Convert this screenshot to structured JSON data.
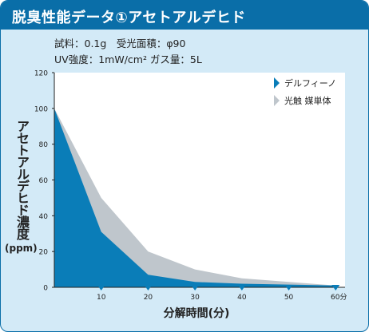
{
  "title": "脱臭性能データ①アセトアルデヒド",
  "conditions": {
    "line1": "試料：0.1g　受光面積：φ90",
    "line2": "UV強度：1mW/cm²  ガス量：5L"
  },
  "colors": {
    "accent": "#0a6ea8",
    "panel_bg": "#d3eaf7",
    "series_delfino": "#0a7db8",
    "series_photocatalyst": "#bfc6cc"
  },
  "chart_data": {
    "type": "area",
    "title": "脱臭性能データ①アセトアルデヒド",
    "xlabel": "分解時間(分)",
    "ylabel": "アセトアルデヒド濃度",
    "yunit": "(ppm)",
    "xlim": [
      0,
      62
    ],
    "ylim": [
      0,
      120
    ],
    "x_ticks": [
      "10",
      "20",
      "30",
      "40",
      "50",
      "60分"
    ],
    "x_tick_values": [
      10,
      20,
      30,
      40,
      50,
      60
    ],
    "y_ticks": [
      "0",
      "20",
      "40",
      "60",
      "80",
      "100",
      "120"
    ],
    "y_tick_values": [
      0,
      20,
      40,
      60,
      80,
      100,
      120
    ],
    "grid": false,
    "legend_position": "top-right",
    "series": [
      {
        "name": "光触 媒単体",
        "x": [
          0,
          10,
          20,
          30,
          40,
          50,
          60
        ],
        "values": [
          100,
          50,
          20,
          10,
          5,
          3,
          1
        ]
      },
      {
        "name": "デルフィーノ",
        "x": [
          0,
          10,
          20,
          30,
          40,
          50,
          60
        ],
        "values": [
          100,
          31,
          7,
          3,
          2,
          1.5,
          1
        ]
      }
    ]
  }
}
